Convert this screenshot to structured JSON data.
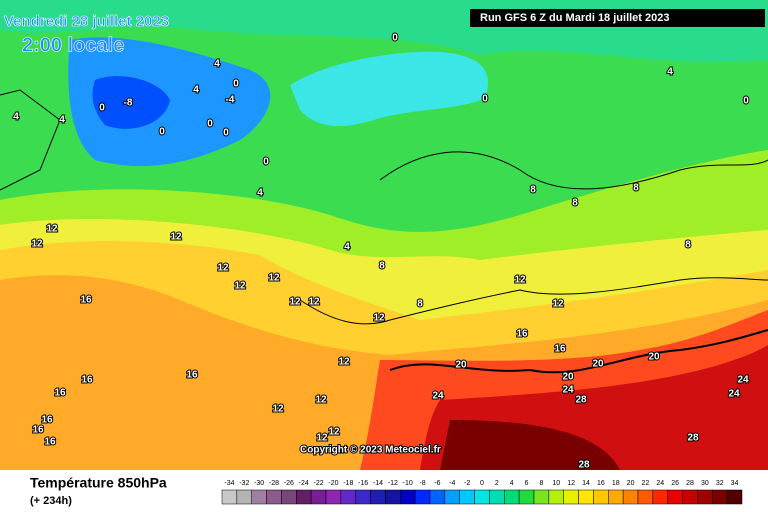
{
  "header": {
    "date": "Vendredi 28 juillet 2023",
    "time": "2:00 locale",
    "run": "Run GFS 6 Z du Mardi 18 juillet 2023"
  },
  "map": {
    "copyright": "Copyright © 2023 Meteociel.fr",
    "contour_labels": [
      "0",
      "4",
      "0",
      "4",
      "-4",
      "-8",
      "0",
      "4",
      "4",
      "0",
      "0",
      "0",
      "0",
      "0",
      "4",
      "0",
      "4",
      "8",
      "8",
      "8",
      "4",
      "8",
      "12",
      "12",
      "12",
      "12",
      "12",
      "12",
      "12",
      "12",
      "8",
      "12",
      "12",
      "12",
      "8",
      "16",
      "16",
      "16",
      "20",
      "20",
      "20",
      "24",
      "28",
      "20",
      "24",
      "16",
      "16",
      "16",
      "16",
      "16",
      "16",
      "12",
      "12",
      "12",
      "12",
      "12",
      "24",
      "24",
      "28",
      "28"
    ]
  },
  "legend": {
    "title": "Température 850hPa",
    "lead": "(+ 234h)",
    "labels": [
      -34,
      -32,
      -30,
      -28,
      -26,
      -24,
      -22,
      -20,
      -18,
      -16,
      -14,
      -12,
      -10,
      -8,
      -6,
      -4,
      -2,
      0,
      2,
      4,
      6,
      8,
      10,
      12,
      14,
      16,
      18,
      20,
      22,
      24,
      26,
      28,
      30,
      32,
      34
    ],
    "colors": [
      "#c8c8c8",
      "#b4b4b4",
      "#a080a0",
      "#8c5a8c",
      "#784678",
      "#641e64",
      "#781e96",
      "#8c28b4",
      "#6428c8",
      "#3c28c8",
      "#1e1eb4",
      "#1414a0",
      "#0000c8",
      "#0028ff",
      "#0064ff",
      "#00a0ff",
      "#00c8ff",
      "#00e6e6",
      "#00dcb4",
      "#00dc78",
      "#1edc3c",
      "#78e61e",
      "#b4f00a",
      "#e6f000",
      "#ffe600",
      "#ffc800",
      "#ffaa00",
      "#ff8200",
      "#ff5a00",
      "#ff2800",
      "#e60000",
      "#c80000",
      "#a00000",
      "#780000",
      "#500000"
    ]
  }
}
